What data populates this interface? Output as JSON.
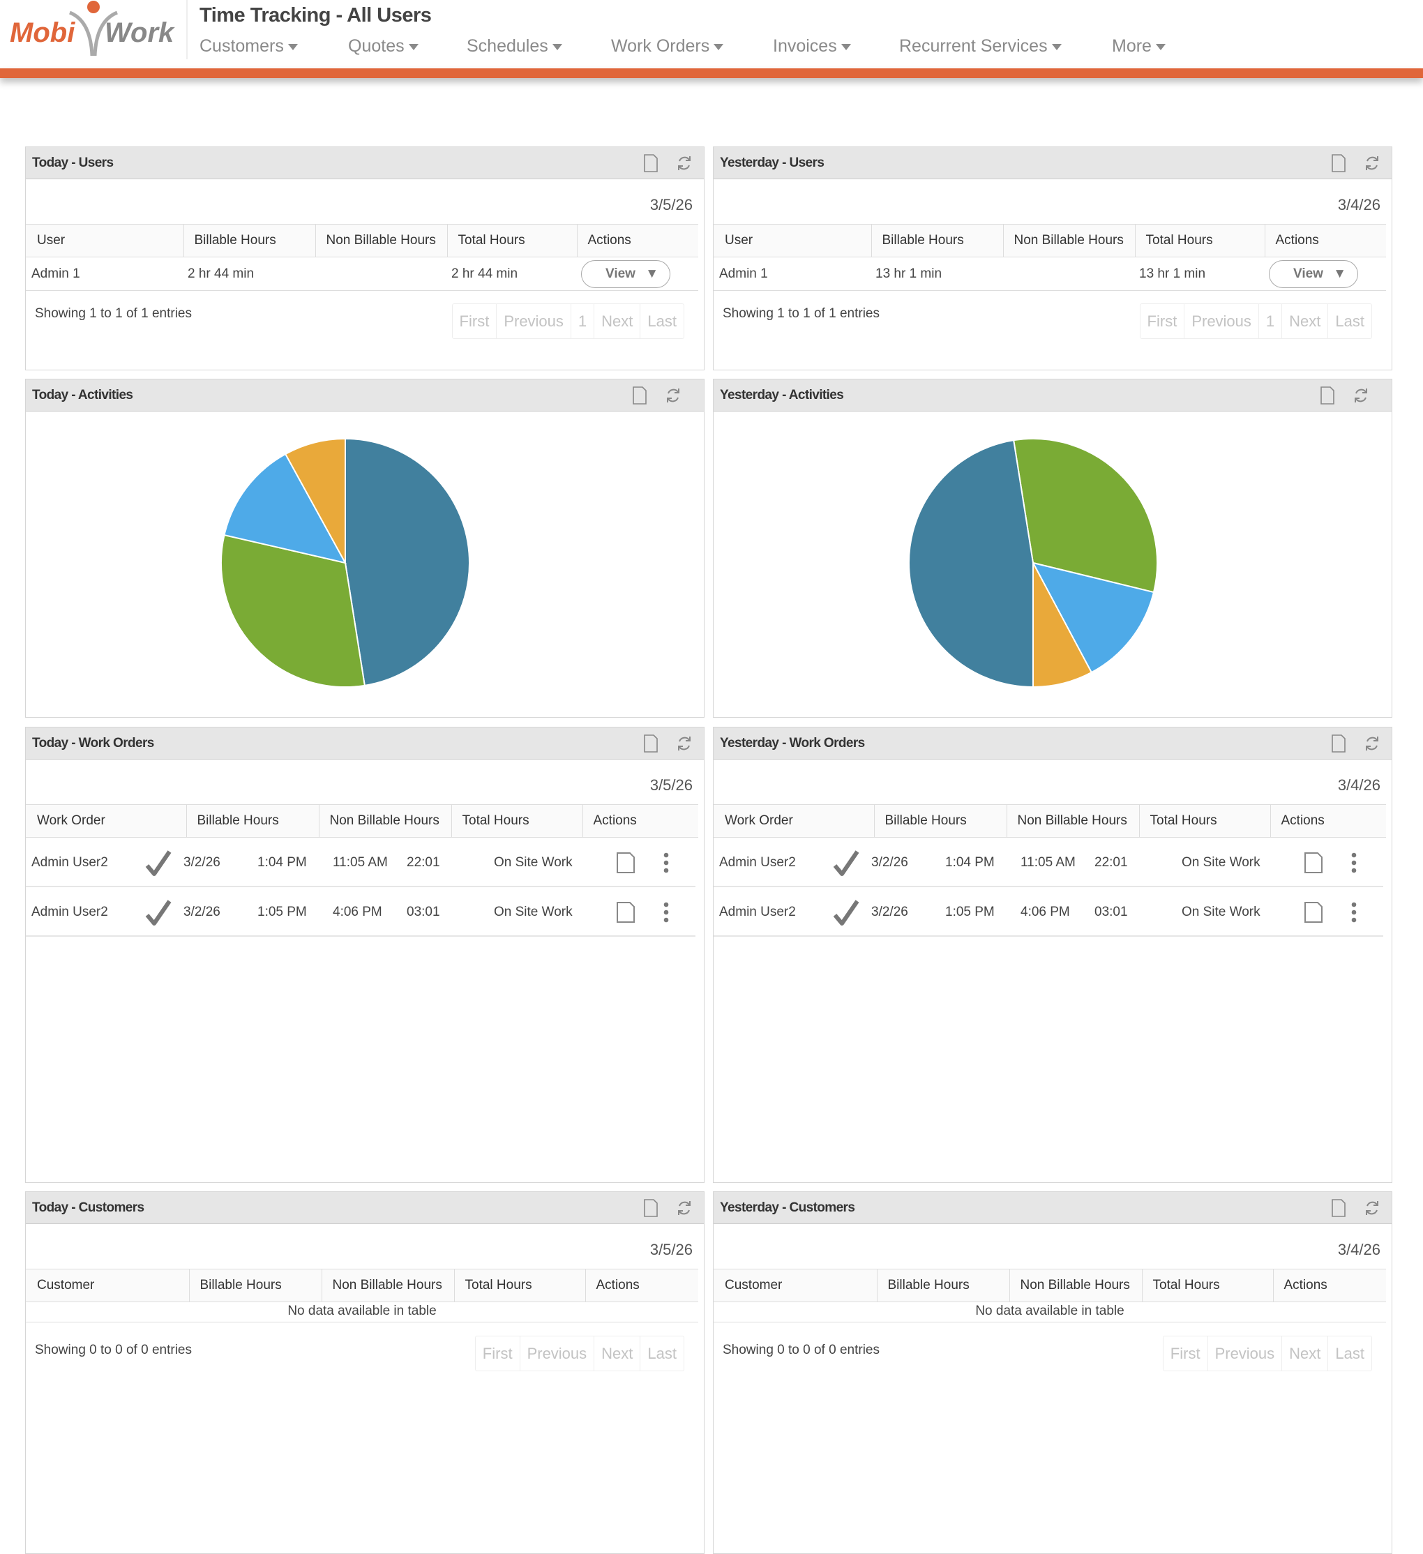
{
  "header": {
    "logo_text": "MobiWork",
    "title": "Time Tracking - All Users",
    "nav": [
      {
        "label": "Customers"
      },
      {
        "label": "Quotes"
      },
      {
        "label": "Schedules"
      },
      {
        "label": "Work Orders"
      },
      {
        "label": "Invoices"
      },
      {
        "label": "Recurrent Services"
      },
      {
        "label": "More"
      }
    ],
    "accent": "#e0663a"
  },
  "common": {
    "user_columns": [
      "User",
      "Billable Hours",
      "Non Billable Hours",
      "Total Hours",
      "Actions"
    ],
    "wo_columns": [
      "Work Order",
      "Billable Hours",
      "Non Billable Hours",
      "Total Hours",
      "Actions"
    ],
    "customer_columns": [
      "Customer",
      "Billable Hours",
      "Non Billable Hours",
      "Total Hours",
      "Actions"
    ],
    "pagination": [
      "First",
      "Previous",
      "1",
      "Next",
      "Last"
    ],
    "pagination_empty": [
      "First",
      "Previous",
      "Next",
      "Last"
    ],
    "view_label": "View",
    "no_data": "No data available in table"
  },
  "today": {
    "users": {
      "title": "Today - Users",
      "date": "3/5/26",
      "rows": [
        {
          "user": "Admin 1",
          "billable": "2 hr 44 min",
          "non_billable": "",
          "total": "2 hr 44 min"
        }
      ],
      "showing": "Showing 1 to 1 of 1 entries"
    },
    "activities": {
      "title": "Today - Activities"
    },
    "work_orders": {
      "title": "Today - Work Orders",
      "date": "3/5/26",
      "rows": [
        {
          "name": "Admin User2",
          "date": "3/2/26",
          "start": "1:04 PM",
          "end": "11:05 AM",
          "duration": "22:01",
          "type": "On Site Work"
        },
        {
          "name": "Admin User2",
          "date": "3/2/26",
          "start": "1:05 PM",
          "end": "4:06 PM",
          "duration": "03:01",
          "type": "On Site Work"
        }
      ]
    },
    "customers": {
      "title": "Today - Customers",
      "date": "3/5/26",
      "showing": "Showing 0 to 0 of 0 entries"
    }
  },
  "yesterday": {
    "users": {
      "title": "Yesterday - Users",
      "date": "3/4/26",
      "rows": [
        {
          "user": "Admin 1",
          "billable": "13 hr 1 min",
          "non_billable": "",
          "total": "13 hr 1 min"
        }
      ],
      "showing": "Showing 1 to 1 of 1 entries"
    },
    "activities": {
      "title": "Yesterday - Activities"
    },
    "work_orders": {
      "title": "Yesterday - Work Orders",
      "date": "3/4/26",
      "rows": [
        {
          "name": "Admin User2",
          "date": "3/2/26",
          "start": "1:04 PM",
          "end": "11:05 AM",
          "duration": "22:01",
          "type": "On Site Work"
        },
        {
          "name": "Admin User2",
          "date": "3/2/26",
          "start": "1:05 PM",
          "end": "4:06 PM",
          "duration": "03:01",
          "type": "On Site Work"
        }
      ]
    },
    "customers": {
      "title": "Yesterday - Customers",
      "date": "3/4/26",
      "showing": "Showing 0 to 0 of 0 entries"
    }
  },
  "chart_data": [
    {
      "type": "pie",
      "title": "Today - Activities",
      "values": [
        47.5,
        31.1,
        13.4,
        8.0
      ],
      "colors": [
        "#41809e",
        "#7aab35",
        "#4eaae8",
        "#e9a93a"
      ]
    },
    {
      "type": "pie",
      "title": "Yesterday - Activities",
      "values": [
        31.3,
        13.4,
        7.8,
        47.5
      ],
      "colors": [
        "#7aab35",
        "#4eaae8",
        "#e9a93a",
        "#41809e"
      ]
    }
  ]
}
